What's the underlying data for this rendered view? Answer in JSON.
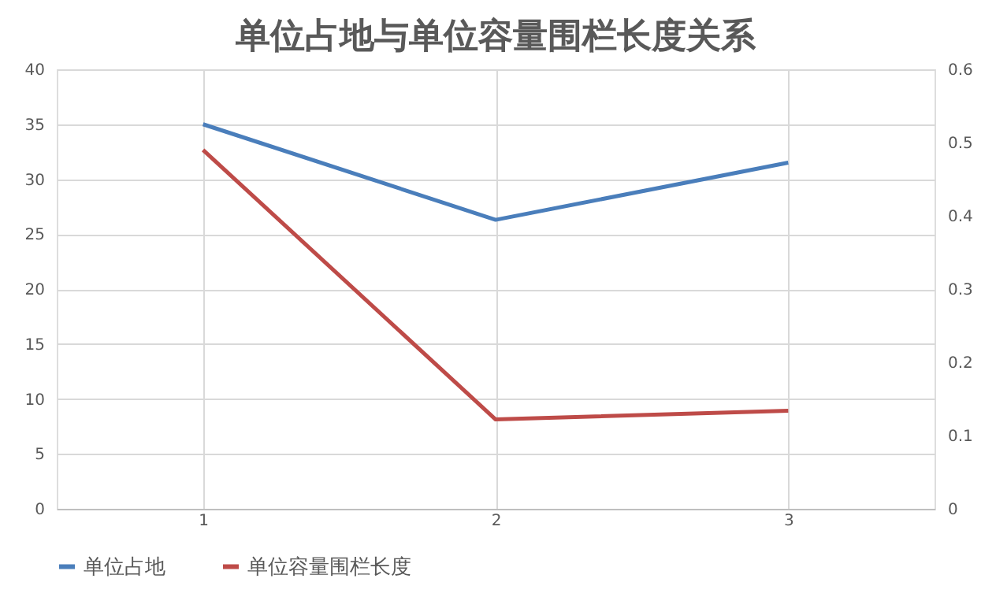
{
  "chart_data": {
    "type": "line",
    "title": "单位占地与单位容量围栏长度关系",
    "categories": [
      "1",
      "2",
      "3"
    ],
    "series": [
      {
        "name": "单位占地",
        "color": "#4a7ebb",
        "values": [
          35.0,
          26.3,
          31.5
        ]
      },
      {
        "name": "单位容量围栏长度",
        "color": "#be4b48",
        "values": [
          0.49,
          0.122,
          0.134
        ],
        "axis": "y2"
      }
    ],
    "ylim": [
      0,
      40
    ],
    "yticks": [
      0,
      5,
      10,
      15,
      20,
      25,
      30,
      35,
      40
    ],
    "y2lim": [
      0,
      0.6
    ],
    "y2ticks": [
      0,
      0.1,
      0.2,
      0.3,
      0.4,
      0.5,
      0.6
    ],
    "grid": true,
    "legend": "bottom",
    "marker": "none",
    "line_style": "solid"
  }
}
